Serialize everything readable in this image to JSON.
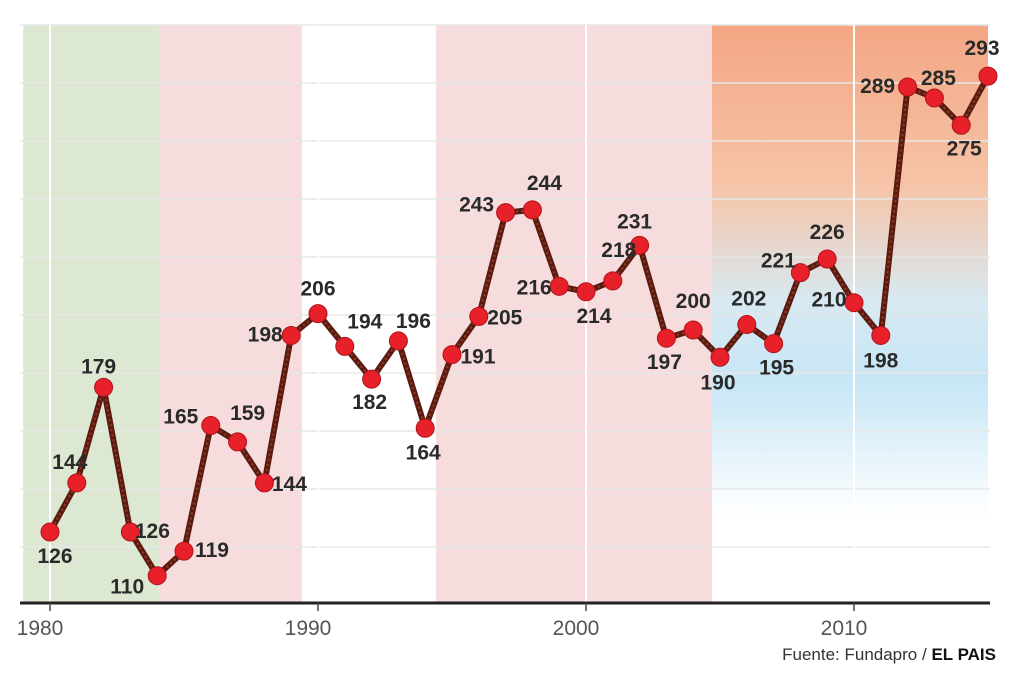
{
  "source": {
    "prefix": "Fuente: Fundapro / ",
    "brand": "EL PAIS"
  },
  "chart_data": {
    "type": "line",
    "title": "",
    "xlabel": "",
    "ylabel": "",
    "xlim": [
      1979,
      2015
    ],
    "ylim": [
      100,
      300
    ],
    "x_ticks": [
      1980,
      1990,
      2000,
      2010
    ],
    "grid": "horizontal lines",
    "marker_color": "#e8202a",
    "line_color": "#5a1a12",
    "period_bands": [
      {
        "from": 1979,
        "to": 1984.1,
        "color": "#dde8d2"
      },
      {
        "from": 1984.1,
        "to": 1989.4,
        "color": "#f6dcdc"
      },
      {
        "from": 1989.4,
        "to": 1994.4,
        "color": "#ffffff"
      },
      {
        "from": 1994.4,
        "to": 2004.7,
        "color": "#f6dcdc"
      },
      {
        "from": 2004.7,
        "to": 2015,
        "color": "gradient-orange-blue"
      }
    ],
    "series": [
      {
        "x": [
          1980,
          1981,
          1982,
          1983,
          1984,
          1985,
          1986,
          1987,
          1988,
          1989,
          1990,
          1991,
          1992,
          1993,
          1994,
          1995,
          1996,
          1997,
          1998,
          1999,
          2000,
          2001,
          2002,
          2003,
          2004,
          2005,
          2006,
          2007,
          2008,
          2009,
          2010,
          2011,
          2012,
          2013,
          2014,
          2015
        ],
        "values": [
          126,
          144,
          179,
          126,
          110,
          119,
          165,
          159,
          144,
          198,
          206,
          194,
          182,
          196,
          164,
          191,
          205,
          243,
          244,
          216,
          214,
          218,
          231,
          197,
          200,
          190,
          202,
          195,
          221,
          226,
          210,
          198,
          289,
          285,
          275,
          293
        ],
        "labels": [
          "126",
          "144",
          "179",
          "126",
          "110",
          "119",
          "165",
          "159",
          "144",
          "198",
          "206",
          "194",
          "182",
          "196",
          "164",
          "191",
          "205",
          "243",
          "244",
          "216",
          "214",
          "218",
          "231",
          "197",
          "200",
          "190",
          "202",
          "195",
          "221",
          "226",
          "210",
          "198",
          "289",
          "285",
          "275",
          "293"
        ]
      }
    ]
  }
}
